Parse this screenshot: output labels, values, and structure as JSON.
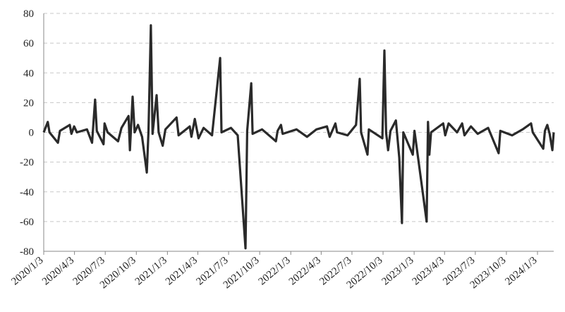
{
  "chart_data": {
    "type": "line",
    "color": "#2a2a2a",
    "grid": true,
    "xlim": [
      "2020/1/3",
      "2024/2/20"
    ],
    "xticks": [
      "2020/1/3",
      "2020/4/3",
      "2020/7/3",
      "2020/10/3",
      "2021/1/3",
      "2021/4/3",
      "2021/7/3",
      "2021/10/3",
      "2022/1/3",
      "2022/4/3",
      "2022/7/3",
      "2022/10/3",
      "2023/1/3",
      "2023/4/3",
      "2023/7/3",
      "2023/10/3",
      "2024/1/3"
    ],
    "ylim": [
      -80,
      80
    ],
    "yticks": [
      -80,
      -60,
      -40,
      -20,
      0,
      20,
      40,
      60,
      80
    ],
    "x": [
      "2020/1/3",
      "2020/1/15",
      "2020/1/20",
      "2020/2/14",
      "2020/2/20",
      "2020/3/20",
      "2020/3/25",
      "2020/4/2",
      "2020/4/10",
      "2020/5/10",
      "2020/5/25",
      "2020/6/3",
      "2020/6/8",
      "2020/6/28",
      "2020/7/1",
      "2020/7/10",
      "2020/8/10",
      "2020/8/20",
      "2020/9/10",
      "2020/9/14",
      "2020/9/22",
      "2020/9/28",
      "2020/10/8",
      "2020/10/20",
      "2020/11/3",
      "2020/11/8",
      "2020/11/15",
      "2020/11/20",
      "2020/12/2",
      "2020/12/8",
      "2020/12/20",
      "2020/12/28",
      "2021/1/30",
      "2021/2/5",
      "2021/3/10",
      "2021/3/15",
      "2021/3/25",
      "2021/4/5",
      "2021/4/20",
      "2021/5/15",
      "2021/6/8",
      "2021/6/12",
      "2021/7/10",
      "2021/7/30",
      "2021/8/22",
      "2021/8/27",
      "2021/9/8",
      "2021/9/12",
      "2021/10/10",
      "2021/11/20",
      "2021/11/25",
      "2021/12/5",
      "2021/12/10",
      "2022/1/20",
      "2022/2/20",
      "2022/3/20",
      "2022/4/20",
      "2022/4/28",
      "2022/5/15",
      "2022/5/20",
      "2022/6/20",
      "2022/7/15",
      "2022/7/26",
      "2022/7/30",
      "2022/8/18",
      "2022/8/22",
      "2022/10/1",
      "2022/10/7",
      "2022/10/12",
      "2022/10/18",
      "2022/10/25",
      "2022/11/10",
      "2022/11/20",
      "2022/11/28",
      "2022/12/2",
      "2022/12/30",
      "2023/1/4",
      "2023/2/9",
      "2023/2/13",
      "2023/2/17",
      "2023/2/22",
      "2023/3/30",
      "2023/4/5",
      "2023/4/15",
      "2023/5/10",
      "2023/5/25",
      "2023/6/1",
      "2023/6/20",
      "2023/7/10",
      "2023/8/10",
      "2023/9/10",
      "2023/9/15",
      "2023/10/20",
      "2023/11/20",
      "2023/12/15",
      "2023/12/20",
      "2024/1/20",
      "2024/1/25",
      "2024/2/1",
      "2024/2/8",
      "2024/2/16",
      "2024/2/20"
    ],
    "values": [
      0,
      7,
      0,
      -7,
      1,
      5,
      -1,
      4,
      0,
      2,
      -7,
      22,
      1,
      -8,
      6,
      0,
      -6,
      3,
      11,
      -12,
      24,
      0,
      5,
      -3,
      -27,
      1,
      72,
      -1,
      25,
      0,
      -9,
      2,
      10,
      -2,
      4,
      -3,
      9,
      -4,
      3,
      -2,
      50,
      0,
      3,
      -2,
      -78,
      1,
      33,
      -1,
      2,
      -6,
      1,
      5,
      -1,
      2,
      -3,
      2,
      4,
      -3,
      6,
      0,
      -2,
      5,
      36,
      0,
      -15,
      2,
      -4,
      55,
      0,
      -12,
      1,
      8,
      -17,
      -61,
      0,
      -15,
      1,
      -60,
      7,
      -15,
      0,
      6,
      -2,
      6,
      0,
      6,
      -2,
      4,
      -1,
      3,
      -14,
      1,
      -2,
      2,
      6,
      0,
      -11,
      1,
      5,
      -1,
      -12,
      0
    ]
  }
}
